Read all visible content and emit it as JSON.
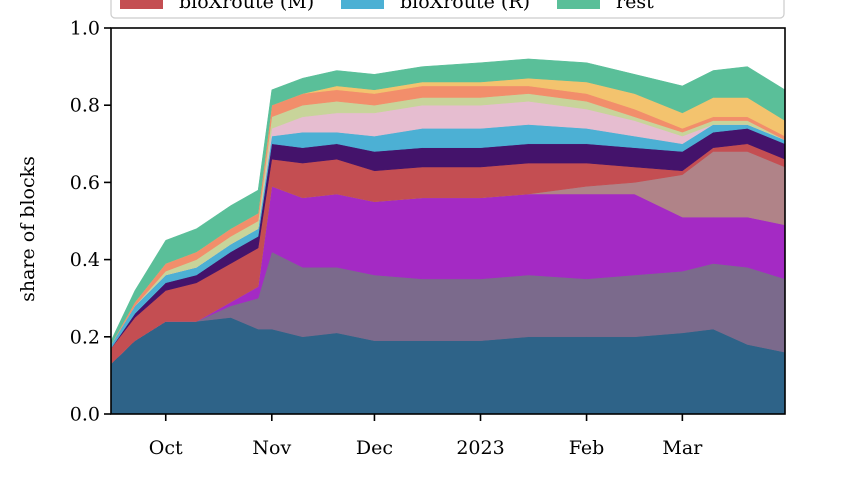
{
  "chart_data": {
    "type": "area",
    "stacked": true,
    "ylabel": "share of blocks",
    "xlabel": "",
    "ylim": [
      0,
      1
    ],
    "yticks": [
      0.0,
      0.2,
      0.4,
      0.6,
      0.8,
      1.0
    ],
    "ytick_labels": [
      "0.0",
      "0.2",
      "0.4",
      "0.6",
      "0.8",
      "1.0"
    ],
    "xlim": [
      "2022-09-15",
      "2023-03-31"
    ],
    "xticks": [
      {
        "date": "2022-10-01",
        "label": "Oct"
      },
      {
        "date": "2022-11-01",
        "label": "Nov"
      },
      {
        "date": "2022-12-01",
        "label": "Dec"
      },
      {
        "date": "2023-01-01",
        "label": "2023"
      },
      {
        "date": "2023-02-01",
        "label": "Feb"
      },
      {
        "date": "2023-03-01",
        "label": "Mar"
      }
    ],
    "grid": false,
    "legend_position": "top",
    "legend": [
      {
        "label": "bloXroute (M)",
        "color": "#c44e52"
      },
      {
        "label": "bloXroute (R)",
        "color": "#4cb0d4"
      },
      {
        "label": "rest",
        "color": "#5abf99"
      }
    ],
    "x": [
      "2022-09-15",
      "2022-09-22",
      "2022-10-01",
      "2022-10-10",
      "2022-10-20",
      "2022-10-28",
      "2022-11-01",
      "2022-11-10",
      "2022-11-20",
      "2022-12-01",
      "2022-12-15",
      "2023-01-01",
      "2023-01-15",
      "2023-02-01",
      "2023-02-15",
      "2023-03-01",
      "2023-03-10",
      "2023-03-20",
      "2023-03-31"
    ],
    "series": [
      {
        "color": "#2e6388",
        "values": [
          0.13,
          0.19,
          0.24,
          0.24,
          0.25,
          0.22,
          0.22,
          0.2,
          0.21,
          0.19,
          0.19,
          0.19,
          0.2,
          0.2,
          0.2,
          0.21,
          0.22,
          0.18,
          0.16
        ]
      },
      {
        "color": "#7b6a8c",
        "values": [
          0.0,
          0.0,
          0.0,
          0.0,
          0.03,
          0.08,
          0.2,
          0.18,
          0.17,
          0.17,
          0.16,
          0.16,
          0.16,
          0.15,
          0.16,
          0.16,
          0.17,
          0.2,
          0.19
        ]
      },
      {
        "color": "#a42ac4",
        "values": [
          0.0,
          0.0,
          0.0,
          0.0,
          0.01,
          0.03,
          0.17,
          0.18,
          0.19,
          0.19,
          0.21,
          0.21,
          0.21,
          0.22,
          0.21,
          0.14,
          0.12,
          0.13,
          0.14
        ]
      },
      {
        "color": "#b08388",
        "values": [
          0.0,
          0.0,
          0.0,
          0.0,
          0.0,
          0.0,
          0.0,
          0.0,
          0.0,
          0.0,
          0.0,
          0.0,
          0.0,
          0.02,
          0.03,
          0.11,
          0.17,
          0.17,
          0.15
        ]
      },
      {
        "color": "#c44e52",
        "values": [
          0.04,
          0.06,
          0.08,
          0.1,
          0.1,
          0.1,
          0.07,
          0.09,
          0.09,
          0.08,
          0.08,
          0.08,
          0.08,
          0.06,
          0.04,
          0.01,
          0.01,
          0.02,
          0.02
        ]
      },
      {
        "color": "#44136b",
        "values": [
          0.0,
          0.01,
          0.02,
          0.02,
          0.03,
          0.03,
          0.04,
          0.04,
          0.04,
          0.05,
          0.05,
          0.05,
          0.05,
          0.05,
          0.05,
          0.05,
          0.04,
          0.04,
          0.04
        ]
      },
      {
        "color": "#4cb0d4",
        "values": [
          0.01,
          0.02,
          0.02,
          0.02,
          0.02,
          0.02,
          0.02,
          0.04,
          0.03,
          0.04,
          0.05,
          0.05,
          0.05,
          0.04,
          0.03,
          0.02,
          0.02,
          0.01,
          0.01
        ]
      },
      {
        "color": "#e6bdd0",
        "values": [
          0.0,
          0.0,
          0.0,
          0.0,
          0.0,
          0.0,
          0.02,
          0.04,
          0.05,
          0.06,
          0.06,
          0.06,
          0.06,
          0.05,
          0.04,
          0.02,
          0.0,
          0.0,
          0.0
        ]
      },
      {
        "color": "#c8d49a",
        "values": [
          0.0,
          0.0,
          0.01,
          0.02,
          0.02,
          0.02,
          0.03,
          0.03,
          0.03,
          0.02,
          0.02,
          0.02,
          0.02,
          0.02,
          0.01,
          0.01,
          0.01,
          0.01,
          0.0
        ]
      },
      {
        "color": "#f28e6b",
        "values": [
          0.0,
          0.01,
          0.02,
          0.02,
          0.02,
          0.02,
          0.03,
          0.03,
          0.03,
          0.03,
          0.03,
          0.03,
          0.02,
          0.02,
          0.02,
          0.01,
          0.01,
          0.01,
          0.01
        ]
      },
      {
        "color": "#f3c36e",
        "values": [
          0.0,
          0.0,
          0.0,
          0.0,
          0.0,
          0.0,
          0.0,
          0.0,
          0.01,
          0.01,
          0.01,
          0.01,
          0.02,
          0.03,
          0.04,
          0.04,
          0.05,
          0.05,
          0.04
        ]
      },
      {
        "name": "rest",
        "color": "#5abf99",
        "values": [
          0.01,
          0.03,
          0.06,
          0.06,
          0.06,
          0.06,
          0.04,
          0.04,
          0.04,
          0.04,
          0.04,
          0.05,
          0.05,
          0.05,
          0.05,
          0.07,
          0.07,
          0.08,
          0.08
        ]
      }
    ]
  }
}
